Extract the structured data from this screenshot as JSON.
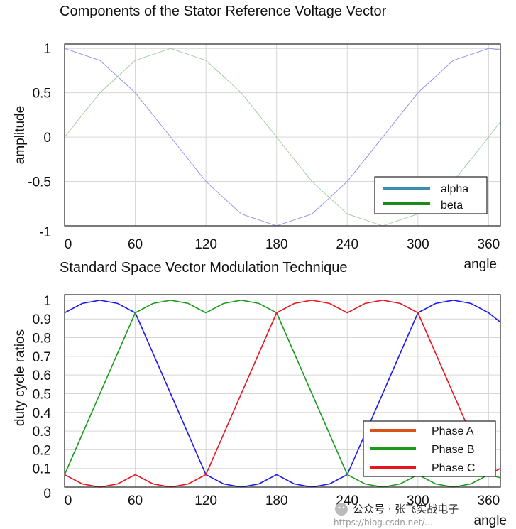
{
  "chart_data": [
    {
      "type": "line",
      "title": "Components of the Stator Reference Voltage Vector",
      "xlabel": "angle",
      "ylabel": "amplitude",
      "xlim": [
        0,
        370
      ],
      "ylim": [
        -1,
        1.05
      ],
      "xticks": [
        "0",
        "60",
        "120",
        "180",
        "240",
        "300",
        "360"
      ],
      "yticks": [
        "1",
        "0.5",
        "0",
        "-0.5",
        "-1"
      ],
      "grid": true,
      "legend_position": "lower-right",
      "legend": [
        {
          "label": "alpha",
          "color": "#3a8fb0"
        },
        {
          "label": "beta",
          "color": "#1a8a1a"
        }
      ],
      "series": [
        {
          "name": "alpha",
          "color": "#8a8ae8",
          "x": [
            0,
            30,
            60,
            90,
            120,
            150,
            180,
            210,
            240,
            270,
            300,
            330,
            360,
            370
          ],
          "y": [
            1,
            0.866,
            0.5,
            0,
            -0.5,
            -0.866,
            -1,
            -0.866,
            -0.5,
            0,
            0.5,
            0.866,
            1,
            0.985
          ]
        },
        {
          "name": "beta",
          "color": "#9cc89c",
          "x": [
            0,
            30,
            60,
            90,
            120,
            150,
            180,
            210,
            240,
            270,
            300,
            330,
            360,
            370
          ],
          "y": [
            0,
            0.5,
            0.866,
            1,
            0.866,
            0.5,
            0,
            -0.5,
            -0.866,
            -1,
            -0.866,
            -0.5,
            0,
            0.174
          ]
        }
      ]
    },
    {
      "type": "line",
      "title": "Standard Space Vector Modulation Technique",
      "xlabel": "angle",
      "ylabel": "duty cycle ratios",
      "xlim": [
        0,
        370
      ],
      "ylim": [
        0,
        1.03
      ],
      "xticks": [
        "0",
        "60",
        "120",
        "180",
        "240",
        "300",
        "360"
      ],
      "yticks": [
        "1",
        "0.9",
        "0.8",
        "0.7",
        "0.6",
        "0.5",
        "0.4",
        "0.3",
        "0.2",
        "0.1",
        "0"
      ],
      "grid": true,
      "legend_position": "lower-right",
      "legend": [
        {
          "label": "Phase A",
          "color": "#d95319"
        },
        {
          "label": "Phase B",
          "color": "#1a9a1a"
        },
        {
          "label": "Phase C",
          "color": "#e8141e"
        }
      ],
      "series": [
        {
          "name": "Phase A",
          "color": "#1a1af0",
          "x": [
            0,
            15,
            30,
            45,
            60,
            90,
            120,
            135,
            150,
            165,
            180,
            195,
            210,
            225,
            240,
            270,
            300,
            315,
            330,
            345,
            360,
            370
          ],
          "y": [
            0.933,
            0.983,
            1.0,
            0.983,
            0.933,
            0.5,
            0.067,
            0.017,
            0.0,
            0.017,
            0.067,
            0.017,
            0.0,
            0.017,
            0.067,
            0.5,
            0.933,
            0.983,
            1.0,
            0.983,
            0.933,
            0.883
          ]
        },
        {
          "name": "Phase B",
          "color": "#1a9a1a",
          "x": [
            0,
            30,
            60,
            75,
            90,
            105,
            120,
            135,
            150,
            165,
            180,
            210,
            240,
            255,
            270,
            285,
            300,
            315,
            330,
            345,
            360,
            370
          ],
          "y": [
            0.067,
            0.5,
            0.933,
            0.983,
            1.0,
            0.983,
            0.933,
            0.983,
            1.0,
            0.983,
            0.933,
            0.5,
            0.067,
            0.017,
            0.0,
            0.017,
            0.067,
            0.017,
            0.0,
            0.017,
            0.067,
            0.05
          ]
        },
        {
          "name": "Phase C",
          "color": "#e8141e",
          "x": [
            0,
            15,
            30,
            45,
            60,
            75,
            90,
            105,
            120,
            150,
            180,
            195,
            210,
            225,
            240,
            255,
            270,
            285,
            300,
            330,
            360,
            370
          ],
          "y": [
            0.067,
            0.017,
            0.0,
            0.017,
            0.067,
            0.017,
            0.0,
            0.017,
            0.067,
            0.5,
            0.933,
            0.983,
            1.0,
            0.983,
            0.933,
            0.983,
            1.0,
            0.983,
            0.933,
            0.5,
            0.067,
            0.1
          ]
        }
      ]
    }
  ],
  "watermark": {
    "text": "公众号 · 张飞实战电子",
    "url": "https://blog.csdn.net/..."
  }
}
